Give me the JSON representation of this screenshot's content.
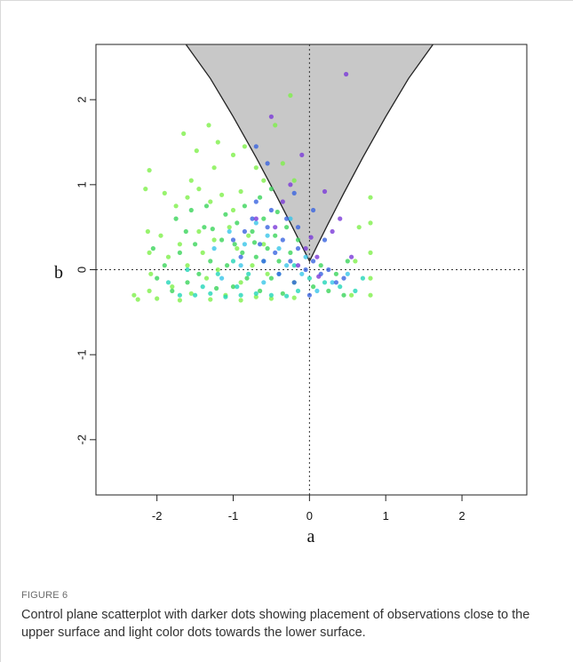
{
  "figure": {
    "label": "FIGURE 6",
    "caption": "Control plane scatterplot with darker dots showing placement of observations close to the upper surface and light color dots towards the lower surface."
  },
  "chart_data": {
    "type": "scatter",
    "title": "",
    "xlabel": "a",
    "ylabel": "b",
    "xlim": [
      -2.8,
      2.85
    ],
    "ylim": [
      -2.65,
      2.65
    ],
    "x_ticks": [
      -2,
      -1,
      0,
      1,
      2
    ],
    "y_ticks": [
      -2,
      -1,
      0,
      1,
      2
    ],
    "reference_lines": {
      "x": 0,
      "y": 0,
      "style": "dotted"
    },
    "shaded_region": {
      "description_color": "#c8c8c8",
      "boundary": [
        [
          -1.62,
          2.65
        ],
        [
          -1.3,
          2.25
        ],
        [
          -1.0,
          1.8
        ],
        [
          -0.7,
          1.32
        ],
        [
          -0.45,
          0.9
        ],
        [
          -0.25,
          0.55
        ],
        [
          -0.1,
          0.28
        ],
        [
          0.0,
          0.1
        ],
        [
          0.1,
          0.28
        ],
        [
          0.25,
          0.55
        ],
        [
          0.45,
          0.9
        ],
        [
          0.7,
          1.32
        ],
        [
          1.0,
          1.8
        ],
        [
          1.3,
          2.25
        ],
        [
          1.62,
          2.65
        ]
      ]
    },
    "colors": {
      "light_green": "#7ef04a",
      "green": "#3ad45a",
      "teal": "#22d6b8",
      "cyan": "#38c6e8",
      "blue": "#3a64e0",
      "purple": "#7a3ad8"
    },
    "series": [
      {
        "color_key": "light_green",
        "points": [
          [
            -2.1,
            1.17
          ],
          [
            -1.65,
            1.6
          ],
          [
            -1.48,
            1.4
          ],
          [
            -1.32,
            1.7
          ],
          [
            -1.2,
            1.5
          ],
          [
            -1.0,
            1.35
          ],
          [
            -0.85,
            1.45
          ],
          [
            -0.7,
            1.2
          ],
          [
            -1.9,
            0.9
          ],
          [
            -1.75,
            0.75
          ],
          [
            -1.6,
            0.85
          ],
          [
            -1.45,
            0.95
          ],
          [
            -1.3,
            0.8
          ],
          [
            -1.15,
            0.88
          ],
          [
            -1.0,
            0.7
          ],
          [
            -0.9,
            0.92
          ],
          [
            -2.12,
            0.45
          ],
          [
            -2.1,
            0.2
          ],
          [
            -2.08,
            -0.05
          ],
          [
            -2.1,
            -0.25
          ],
          [
            -1.95,
            0.4
          ],
          [
            -1.85,
            0.15
          ],
          [
            -1.8,
            -0.2
          ],
          [
            -1.7,
            0.3
          ],
          [
            -1.6,
            0.05
          ],
          [
            -1.55,
            -0.28
          ],
          [
            -1.45,
            0.45
          ],
          [
            -1.4,
            0.2
          ],
          [
            -1.35,
            -0.1
          ],
          [
            -1.25,
            0.35
          ],
          [
            -1.2,
            0.0
          ],
          [
            -1.1,
            -0.3
          ],
          [
            -1.05,
            0.5
          ],
          [
            -0.95,
            0.25
          ],
          [
            -0.9,
            -0.15
          ],
          [
            -0.8,
            0.4
          ],
          [
            -0.75,
            0.05
          ],
          [
            -0.7,
            -0.32
          ],
          [
            -0.6,
            0.3
          ],
          [
            -0.55,
            -0.05
          ],
          [
            -2.3,
            -0.3
          ],
          [
            -2.25,
            -0.35
          ],
          [
            -2.0,
            -0.34
          ],
          [
            -1.7,
            -0.36
          ],
          [
            -1.3,
            -0.35
          ],
          [
            -0.9,
            -0.36
          ],
          [
            -0.5,
            -0.34
          ],
          [
            -0.2,
            -0.33
          ],
          [
            0.8,
            0.85
          ],
          [
            0.8,
            0.55
          ],
          [
            0.8,
            0.2
          ],
          [
            0.8,
            -0.1
          ],
          [
            0.8,
            -0.3
          ],
          [
            0.65,
            0.5
          ],
          [
            0.6,
            0.1
          ],
          [
            0.55,
            -0.3
          ],
          [
            -0.25,
            2.05
          ],
          [
            -0.45,
            1.7
          ],
          [
            -0.35,
            1.25
          ],
          [
            -0.2,
            1.05
          ],
          [
            -1.55,
            1.05
          ],
          [
            -1.25,
            1.2
          ],
          [
            -0.6,
            1.05
          ],
          [
            -2.15,
            0.95
          ]
        ]
      },
      {
        "color_key": "green",
        "points": [
          [
            -1.9,
            0.05
          ],
          [
            -1.8,
            -0.25
          ],
          [
            -1.7,
            0.2
          ],
          [
            -1.6,
            -0.15
          ],
          [
            -1.5,
            0.3
          ],
          [
            -1.45,
            -0.05
          ],
          [
            -1.38,
            0.5
          ],
          [
            -1.3,
            0.1
          ],
          [
            -1.22,
            -0.22
          ],
          [
            -1.15,
            0.35
          ],
          [
            -1.08,
            0.05
          ],
          [
            -1.0,
            -0.2
          ],
          [
            -0.95,
            0.55
          ],
          [
            -0.88,
            0.2
          ],
          [
            -0.82,
            -0.1
          ],
          [
            -0.75,
            0.45
          ],
          [
            -0.7,
            0.15
          ],
          [
            -0.65,
            -0.25
          ],
          [
            -0.6,
            0.6
          ],
          [
            -0.55,
            0.25
          ],
          [
            -0.5,
            -0.1
          ],
          [
            -0.45,
            0.4
          ],
          [
            -0.4,
            0.1
          ],
          [
            -0.35,
            -0.28
          ],
          [
            -0.3,
            0.5
          ],
          [
            -0.25,
            0.2
          ],
          [
            -0.2,
            -0.15
          ],
          [
            -1.75,
            0.6
          ],
          [
            -1.55,
            0.7
          ],
          [
            -1.35,
            0.75
          ],
          [
            -1.1,
            0.65
          ],
          [
            -0.85,
            0.75
          ],
          [
            -0.65,
            0.85
          ],
          [
            -0.5,
            0.95
          ],
          [
            -2.0,
            -0.1
          ],
          [
            -2.05,
            0.25
          ],
          [
            0.05,
            -0.2
          ],
          [
            0.15,
            0.05
          ],
          [
            0.25,
            -0.25
          ],
          [
            0.35,
            -0.05
          ],
          [
            0.45,
            -0.3
          ],
          [
            0.5,
            0.1
          ],
          [
            -1.62,
            0.45
          ],
          [
            -1.27,
            0.48
          ],
          [
            -0.98,
            0.3
          ],
          [
            -0.72,
            0.32
          ],
          [
            -0.42,
            0.68
          ],
          [
            -0.15,
            0.35
          ]
        ]
      },
      {
        "color_key": "teal",
        "points": [
          [
            -1.7,
            -0.3
          ],
          [
            -1.5,
            -0.3
          ],
          [
            -1.3,
            -0.28
          ],
          [
            -1.1,
            -0.32
          ],
          [
            -0.9,
            -0.3
          ],
          [
            -0.7,
            -0.28
          ],
          [
            -0.5,
            -0.3
          ],
          [
            -0.3,
            -0.31
          ],
          [
            -1.2,
            -0.05
          ],
          [
            -1.0,
            0.1
          ],
          [
            -0.8,
            -0.05
          ],
          [
            -0.6,
            0.1
          ],
          [
            -0.4,
            -0.05
          ],
          [
            -0.2,
            0.05
          ],
          [
            0.0,
            -0.1
          ],
          [
            0.2,
            -0.15
          ],
          [
            0.4,
            -0.2
          ],
          [
            0.6,
            -0.25
          ],
          [
            0.7,
            -0.1
          ],
          [
            -1.4,
            -0.2
          ],
          [
            -1.6,
            0.0
          ],
          [
            -1.85,
            -0.15
          ],
          [
            -0.95,
            -0.2
          ],
          [
            -0.15,
            -0.25
          ]
        ]
      },
      {
        "color_key": "cyan",
        "points": [
          [
            -1.25,
            0.25
          ],
          [
            -1.05,
            0.45
          ],
          [
            -0.85,
            0.3
          ],
          [
            -0.7,
            0.55
          ],
          [
            -0.55,
            0.4
          ],
          [
            -0.4,
            0.25
          ],
          [
            -0.3,
            0.05
          ],
          [
            -0.1,
            -0.05
          ],
          [
            0.1,
            -0.25
          ],
          [
            0.3,
            -0.15
          ],
          [
            0.5,
            -0.05
          ],
          [
            -0.6,
            -0.15
          ],
          [
            -0.9,
            0.05
          ],
          [
            -1.15,
            -0.1
          ],
          [
            -0.25,
            0.6
          ],
          [
            -0.05,
            0.15
          ]
        ]
      },
      {
        "color_key": "blue",
        "points": [
          [
            -0.85,
            0.45
          ],
          [
            -0.75,
            0.6
          ],
          [
            -0.65,
            0.3
          ],
          [
            -0.55,
            0.5
          ],
          [
            -0.45,
            0.2
          ],
          [
            -0.35,
            0.35
          ],
          [
            -0.25,
            0.1
          ],
          [
            -0.15,
            0.25
          ],
          [
            -0.05,
            0.0
          ],
          [
            0.05,
            0.1
          ],
          [
            0.15,
            -0.05
          ],
          [
            0.25,
            0.0
          ],
          [
            0.35,
            -0.15
          ],
          [
            0.45,
            -0.1
          ],
          [
            -0.6,
            0.1
          ],
          [
            -0.4,
            -0.05
          ],
          [
            -0.2,
            -0.15
          ],
          [
            0.0,
            -0.3
          ],
          [
            -0.9,
            0.15
          ],
          [
            -1.0,
            0.35
          ],
          [
            -0.7,
            0.8
          ],
          [
            -0.5,
            0.7
          ],
          [
            -0.3,
            0.6
          ],
          [
            -0.15,
            0.5
          ],
          [
            -0.2,
            0.9
          ],
          [
            0.05,
            0.7
          ],
          [
            0.2,
            0.35
          ],
          [
            -0.55,
            1.25
          ],
          [
            -0.7,
            1.45
          ]
        ]
      },
      {
        "color_key": "purple",
        "points": [
          [
            0.48,
            2.3
          ],
          [
            -0.5,
            1.8
          ],
          [
            -0.1,
            1.35
          ],
          [
            0.2,
            0.92
          ],
          [
            -0.25,
            1.0
          ],
          [
            0.02,
            0.38
          ],
          [
            -0.05,
            0.25
          ],
          [
            0.1,
            0.15
          ],
          [
            0.3,
            0.45
          ],
          [
            -0.35,
            0.8
          ],
          [
            -0.15,
            0.05
          ],
          [
            0.12,
            -0.08
          ],
          [
            -0.45,
            0.5
          ],
          [
            0.55,
            0.15
          ],
          [
            -0.7,
            0.6
          ],
          [
            0.4,
            0.6
          ]
        ]
      }
    ]
  }
}
